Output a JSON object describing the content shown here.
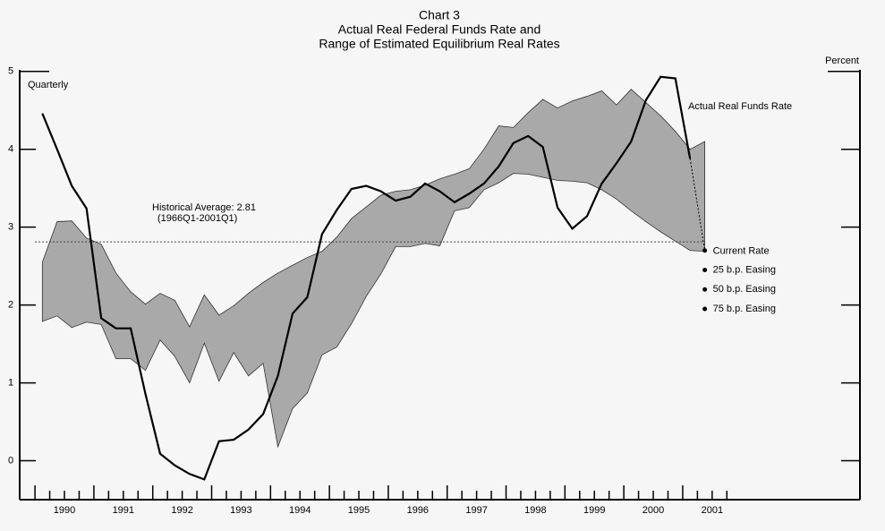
{
  "chart_data": {
    "type": "line",
    "title": [
      "Chart 3",
      "Actual Real Federal Funds Rate and",
      "Range of Estimated Equilibrium Real Rates"
    ],
    "y_label": "Percent",
    "frequency_label": "Quarterly",
    "xlim": [
      1989.74,
      2004.01
    ],
    "ylim": [
      -0.5,
      5.02
    ],
    "yticks": [
      0,
      1,
      2,
      3,
      4,
      5
    ],
    "xticks": [
      {
        "value": 1990.5,
        "label": "1990"
      },
      {
        "value": 1991.5,
        "label": "1991"
      },
      {
        "value": 1992.5,
        "label": "1992"
      },
      {
        "value": 1993.5,
        "label": "1993"
      },
      {
        "value": 1994.5,
        "label": "1994"
      },
      {
        "value": 1995.5,
        "label": "1995"
      },
      {
        "value": 1996.5,
        "label": "1996"
      },
      {
        "value": 1997.5,
        "label": "1997"
      },
      {
        "value": 1998.5,
        "label": "1998"
      },
      {
        "value": 1999.5,
        "label": "1999"
      },
      {
        "value": 2000.5,
        "label": "2000"
      },
      {
        "value": 2001.5,
        "label": "2001"
      }
    ],
    "xtickmarks": [
      1990,
      1990.25,
      1990.5,
      1990.75,
      1991,
      1991.25,
      1991.5,
      1991.75,
      1992,
      1992.25,
      1992.5,
      1992.75,
      1993,
      1993.25,
      1993.5,
      1993.75,
      1994,
      1994.25,
      1994.5,
      1994.75,
      1995,
      1995.25,
      1995.5,
      1995.75,
      1996,
      1996.25,
      1996.5,
      1996.75,
      1997,
      1997.25,
      1997.5,
      1997.75,
      1998,
      1998.25,
      1998.5,
      1998.75,
      1999,
      1999.25,
      1999.5,
      1999.75,
      2000,
      2000.25,
      2000.5,
      2000.75,
      2001,
      2001.25,
      2001.5,
      2001.75
    ],
    "series": [
      {
        "name": "Actual Real Funds Rate",
        "color": "#000000",
        "x": [
          1990.125,
          1990.375,
          1990.625,
          1990.875,
          1991.125,
          1991.375,
          1991.625,
          1991.875,
          1992.125,
          1992.375,
          1992.625,
          1992.875,
          1993.125,
          1993.375,
          1993.625,
          1993.875,
          1994.125,
          1994.375,
          1994.625,
          1994.875,
          1995.125,
          1995.375,
          1995.625,
          1995.875,
          1996.125,
          1996.375,
          1996.625,
          1996.875,
          1997.125,
          1997.375,
          1997.625,
          1997.875,
          1998.125,
          1998.375,
          1998.625,
          1998.875,
          1999.125,
          1999.375,
          1999.625,
          1999.875,
          2000.125,
          2000.375,
          2000.625,
          2000.875,
          2001.125
        ],
        "values": [
          4.46,
          4.0,
          3.53,
          3.24,
          1.83,
          1.7,
          1.7,
          0.86,
          0.09,
          -0.06,
          -0.17,
          -0.24,
          0.25,
          0.27,
          0.4,
          0.6,
          1.09,
          1.89,
          2.1,
          2.91,
          3.22,
          3.49,
          3.53,
          3.46,
          3.34,
          3.39,
          3.56,
          3.46,
          3.32,
          3.43,
          3.56,
          3.78,
          4.08,
          4.17,
          4.03,
          3.25,
          2.98,
          3.14,
          3.56,
          3.82,
          4.1,
          4.63,
          4.93,
          4.91,
          3.88
        ]
      }
    ],
    "band": {
      "color": "#a9a9a9",
      "x": [
        1990.125,
        1990.375,
        1990.625,
        1990.875,
        1991.125,
        1991.375,
        1991.625,
        1991.875,
        1992.125,
        1992.375,
        1992.625,
        1992.875,
        1993.125,
        1993.375,
        1993.625,
        1993.875,
        1994.125,
        1994.375,
        1994.625,
        1994.875,
        1995.125,
        1995.375,
        1995.625,
        1995.875,
        1996.125,
        1996.375,
        1996.625,
        1996.875,
        1997.125,
        1997.375,
        1997.625,
        1997.875,
        1998.125,
        1998.375,
        1998.625,
        1998.875,
        1999.125,
        1999.375,
        1999.625,
        1999.875,
        2000.125,
        2000.375,
        2000.625,
        2000.875,
        2001.125,
        2001.375
      ],
      "upper": [
        2.55,
        3.07,
        3.08,
        2.86,
        2.78,
        2.41,
        2.17,
        2.01,
        2.15,
        2.06,
        1.72,
        2.13,
        1.87,
        1.99,
        2.15,
        2.29,
        2.41,
        2.51,
        2.61,
        2.69,
        2.87,
        3.11,
        3.26,
        3.41,
        3.46,
        3.48,
        3.54,
        3.62,
        3.68,
        3.75,
        4.0,
        4.3,
        4.28,
        4.47,
        4.64,
        4.53,
        4.62,
        4.68,
        4.75,
        4.57,
        4.77,
        4.6,
        4.43,
        4.23,
        4.0,
        4.1
      ],
      "lower": [
        1.79,
        1.86,
        1.71,
        1.78,
        1.75,
        1.31,
        1.31,
        1.16,
        1.55,
        1.34,
        1.0,
        1.51,
        1.02,
        1.39,
        1.09,
        1.25,
        0.18,
        0.67,
        0.87,
        1.36,
        1.46,
        1.76,
        2.11,
        2.4,
        2.75,
        2.75,
        2.79,
        2.76,
        3.21,
        3.25,
        3.48,
        3.57,
        3.69,
        3.68,
        3.64,
        3.6,
        3.59,
        3.57,
        3.48,
        3.36,
        3.21,
        3.07,
        2.94,
        2.82,
        2.7,
        2.69
      ]
    },
    "reference_line": {
      "value": 2.81,
      "label": "Historical Average: 2.81",
      "sublabel": "(1966Q1-2001Q1)"
    },
    "points_x": 2001.375,
    "points": [
      {
        "label": "Current Rate",
        "value": 2.7
      },
      {
        "label": "25 b.p. Easing",
        "value": 2.45
      },
      {
        "label": "50 b.p. Easing",
        "value": 2.2
      },
      {
        "label": "75 b.p. Easing",
        "value": 1.95
      }
    ]
  }
}
